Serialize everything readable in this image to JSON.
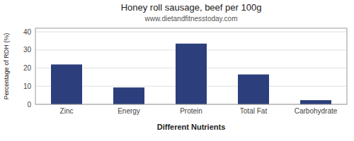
{
  "chart_data": {
    "type": "bar",
    "title": "Honey roll sausage, beef per 100g",
    "subtitle": "www.dietandfitnesstoday.com",
    "xlabel": "Different Nutrients",
    "ylabel": "Percentage of RDH (%)",
    "categories": [
      "Zinc",
      "Energy",
      "Protein",
      "Total Fat",
      "Carbohydrate"
    ],
    "values": [
      22,
      9.3,
      33.5,
      16.5,
      2.3
    ],
    "color": "#2c3f7c",
    "ylim": [
      0,
      42
    ],
    "yticks": [
      0,
      10,
      20,
      30,
      40
    ],
    "grid": true
  }
}
